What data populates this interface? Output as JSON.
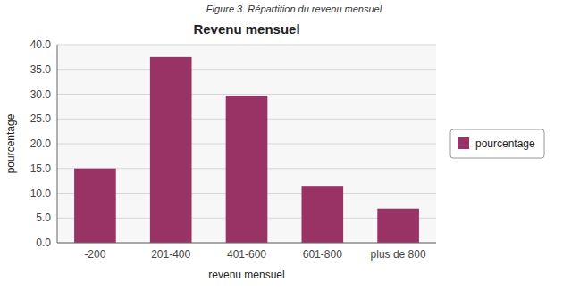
{
  "chart_data": {
    "type": "bar",
    "title": "Revenu mensuel",
    "subtitle": "Figure 3. Répartition du revenu mensuel",
    "xlabel": "revenu mensuel",
    "ylabel": "pourcentage",
    "categories": [
      "-200",
      "201-400",
      "401-600",
      "601-800",
      "plus de 800"
    ],
    "series": [
      {
        "name": "pourcentage",
        "color": "#993366",
        "values": [
          15.0,
          37.5,
          29.7,
          11.5,
          6.9
        ]
      }
    ],
    "ylim": [
      0.0,
      40.0
    ],
    "yticks": [
      {
        "value": 0.0,
        "label": "0.0"
      },
      {
        "value": 5.0,
        "label": "5.0"
      },
      {
        "value": 10.0,
        "label": "10.0"
      },
      {
        "value": 15.0,
        "label": "15.0"
      },
      {
        "value": 20.0,
        "label": "20.0"
      },
      {
        "value": 25.0,
        "label": "25.0"
      },
      {
        "value": 30.0,
        "label": "30.0"
      },
      {
        "value": 35.0,
        "label": "35.0"
      },
      {
        "value": 40.0,
        "label": "40.0"
      }
    ],
    "grid": true,
    "legend": "right"
  }
}
